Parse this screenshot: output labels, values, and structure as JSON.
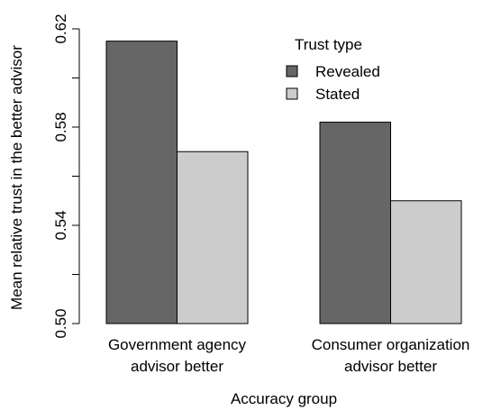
{
  "chart_data": {
    "type": "bar",
    "title": "",
    "xlabel": "Accuracy group",
    "ylabel": "Mean relative trust in the better advisor",
    "ylim": [
      0.5,
      0.62
    ],
    "yticks": [
      0.5,
      0.52,
      0.54,
      0.56,
      0.58,
      0.6,
      0.62
    ],
    "ytick_labels": [
      "0.50",
      "",
      "0.54",
      "",
      "0.58",
      "",
      "0.62"
    ],
    "categories": [
      [
        "Government agency",
        "advisor better"
      ],
      [
        "Consumer organization",
        "advisor better"
      ]
    ],
    "series": [
      {
        "name": "Revealed",
        "values": [
          0.615,
          0.582
        ],
        "color": "#666666"
      },
      {
        "name": "Stated",
        "values": [
          0.57,
          0.55
        ],
        "color": "#cccccc"
      }
    ],
    "legend": {
      "title": "Trust type",
      "position": "top-right"
    },
    "grid": false
  }
}
